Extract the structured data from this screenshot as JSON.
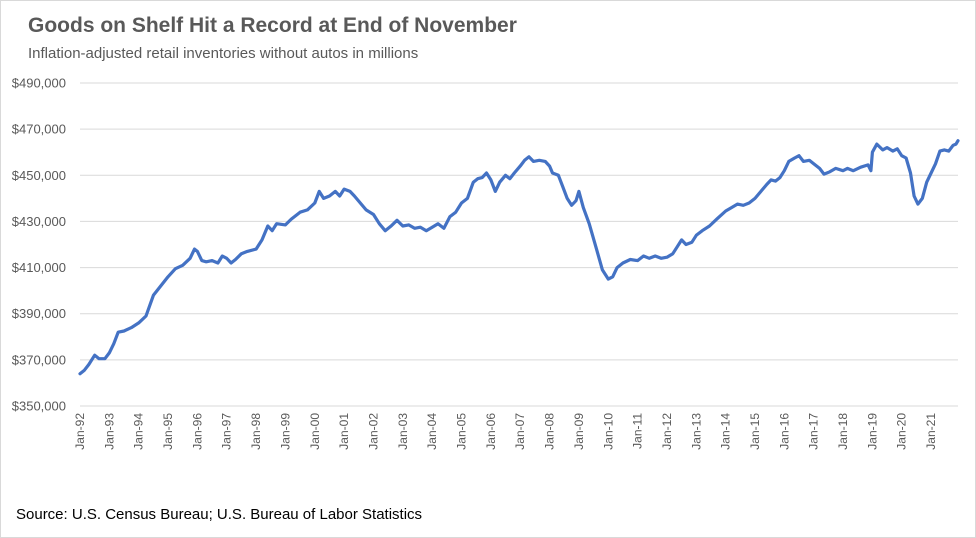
{
  "chart_data": {
    "type": "line",
    "title": "Goods on Shelf Hit a Record at End of November",
    "subtitle": "Inflation-adjusted retail inventories without autos in millions",
    "source": "Source: U.S. Census Bureau; U.S. Bureau of Labor Statistics",
    "xlabel": "",
    "ylabel": "",
    "ylim": [
      350000,
      490000
    ],
    "y_ticks": [
      {
        "value": 350000,
        "label": "$350,000"
      },
      {
        "value": 370000,
        "label": "$370,000"
      },
      {
        "value": 390000,
        "label": "$390,000"
      },
      {
        "value": 410000,
        "label": "$410,000"
      },
      {
        "value": 430000,
        "label": "$430,000"
      },
      {
        "value": 450000,
        "label": "$450,000"
      },
      {
        "value": 470000,
        "label": "$470,000"
      },
      {
        "value": 490000,
        "label": "$490,000"
      }
    ],
    "x_range": [
      1992.0,
      2021.917
    ],
    "x_ticks": [
      {
        "value": 1992,
        "label": "Jan-92"
      },
      {
        "value": 1993,
        "label": "Jan-93"
      },
      {
        "value": 1994,
        "label": "Jan-94"
      },
      {
        "value": 1995,
        "label": "Jan-95"
      },
      {
        "value": 1996,
        "label": "Jan-96"
      },
      {
        "value": 1997,
        "label": "Jan-97"
      },
      {
        "value": 1998,
        "label": "Jan-98"
      },
      {
        "value": 1999,
        "label": "Jan-99"
      },
      {
        "value": 2000,
        "label": "Jan-00"
      },
      {
        "value": 2001,
        "label": "Jan-01"
      },
      {
        "value": 2002,
        "label": "Jan-02"
      },
      {
        "value": 2003,
        "label": "Jan-03"
      },
      {
        "value": 2004,
        "label": "Jan-04"
      },
      {
        "value": 2005,
        "label": "Jan-05"
      },
      {
        "value": 2006,
        "label": "Jan-06"
      },
      {
        "value": 2007,
        "label": "Jan-07"
      },
      {
        "value": 2008,
        "label": "Jan-08"
      },
      {
        "value": 2009,
        "label": "Jan-09"
      },
      {
        "value": 2010,
        "label": "Jan-10"
      },
      {
        "value": 2011,
        "label": "Jan-11"
      },
      {
        "value": 2012,
        "label": "Jan-12"
      },
      {
        "value": 2013,
        "label": "Jan-13"
      },
      {
        "value": 2014,
        "label": "Jan-14"
      },
      {
        "value": 2015,
        "label": "Jan-15"
      },
      {
        "value": 2016,
        "label": "Jan-16"
      },
      {
        "value": 2017,
        "label": "Jan-17"
      },
      {
        "value": 2018,
        "label": "Jan-18"
      },
      {
        "value": 2019,
        "label": "Jan-19"
      },
      {
        "value": 2020,
        "label": "Jan-20"
      },
      {
        "value": 2021,
        "label": "Jan-21"
      }
    ],
    "grid": true,
    "legend": "none",
    "series": [
      {
        "name": "Inflation-adjusted retail inventories without autos",
        "color": "#4472c4",
        "points": [
          [
            1992.0,
            364000
          ],
          [
            1992.15,
            365500
          ],
          [
            1992.3,
            368000
          ],
          [
            1992.5,
            372000
          ],
          [
            1992.65,
            370500
          ],
          [
            1992.85,
            370500
          ],
          [
            1993.0,
            373000
          ],
          [
            1993.15,
            377000
          ],
          [
            1993.3,
            382000
          ],
          [
            1993.5,
            382500
          ],
          [
            1993.75,
            384000
          ],
          [
            1994.0,
            386000
          ],
          [
            1994.25,
            389000
          ],
          [
            1994.5,
            398000
          ],
          [
            1994.75,
            402000
          ],
          [
            1995.0,
            406000
          ],
          [
            1995.25,
            409500
          ],
          [
            1995.5,
            411000
          ],
          [
            1995.75,
            414000
          ],
          [
            1995.9,
            418000
          ],
          [
            1996.0,
            417000
          ],
          [
            1996.15,
            413000
          ],
          [
            1996.3,
            412500
          ],
          [
            1996.5,
            413000
          ],
          [
            1996.7,
            412000
          ],
          [
            1996.85,
            415000
          ],
          [
            1997.0,
            414000
          ],
          [
            1997.15,
            412000
          ],
          [
            1997.3,
            413500
          ],
          [
            1997.5,
            416000
          ],
          [
            1997.7,
            417000
          ],
          [
            1998.0,
            418000
          ],
          [
            1998.2,
            422000
          ],
          [
            1998.4,
            428000
          ],
          [
            1998.55,
            426000
          ],
          [
            1998.7,
            429000
          ],
          [
            1999.0,
            428500
          ],
          [
            1999.2,
            431000
          ],
          [
            1999.5,
            434000
          ],
          [
            1999.75,
            435000
          ],
          [
            2000.0,
            438000
          ],
          [
            2000.15,
            443000
          ],
          [
            2000.3,
            440000
          ],
          [
            2000.5,
            441000
          ],
          [
            2000.7,
            443000
          ],
          [
            2000.85,
            441000
          ],
          [
            2001.0,
            444000
          ],
          [
            2001.2,
            443000
          ],
          [
            2001.35,
            441000
          ],
          [
            2001.55,
            438000
          ],
          [
            2001.75,
            435000
          ],
          [
            2002.0,
            433000
          ],
          [
            2002.2,
            429000
          ],
          [
            2002.4,
            426000
          ],
          [
            2002.6,
            428000
          ],
          [
            2002.8,
            430500
          ],
          [
            2003.0,
            428000
          ],
          [
            2003.2,
            428500
          ],
          [
            2003.4,
            427000
          ],
          [
            2003.6,
            427500
          ],
          [
            2003.8,
            426000
          ],
          [
            2004.0,
            427500
          ],
          [
            2004.2,
            429000
          ],
          [
            2004.4,
            427000
          ],
          [
            2004.6,
            432000
          ],
          [
            2004.8,
            434000
          ],
          [
            2005.0,
            438000
          ],
          [
            2005.2,
            440000
          ],
          [
            2005.4,
            447000
          ],
          [
            2005.55,
            448500
          ],
          [
            2005.7,
            449000
          ],
          [
            2005.85,
            451000
          ],
          [
            2006.0,
            448000
          ],
          [
            2006.15,
            443000
          ],
          [
            2006.3,
            447000
          ],
          [
            2006.5,
            450000
          ],
          [
            2006.65,
            448500
          ],
          [
            2006.8,
            451000
          ],
          [
            2007.0,
            454000
          ],
          [
            2007.15,
            456500
          ],
          [
            2007.3,
            458000
          ],
          [
            2007.45,
            456000
          ],
          [
            2007.65,
            456500
          ],
          [
            2007.85,
            456000
          ],
          [
            2008.0,
            454000
          ],
          [
            2008.1,
            451000
          ],
          [
            2008.3,
            450000
          ],
          [
            2008.45,
            445000
          ],
          [
            2008.6,
            440000
          ],
          [
            2008.75,
            437000
          ],
          [
            2008.9,
            439000
          ],
          [
            2009.0,
            443000
          ],
          [
            2009.15,
            436000
          ],
          [
            2009.35,
            429000
          ],
          [
            2009.6,
            418000
          ],
          [
            2009.8,
            409000
          ],
          [
            2010.0,
            405000
          ],
          [
            2010.15,
            406000
          ],
          [
            2010.3,
            410000
          ],
          [
            2010.5,
            412000
          ],
          [
            2010.75,
            413500
          ],
          [
            2011.0,
            413000
          ],
          [
            2011.2,
            415000
          ],
          [
            2011.4,
            414000
          ],
          [
            2011.6,
            415000
          ],
          [
            2011.8,
            414000
          ],
          [
            2012.0,
            414500
          ],
          [
            2012.2,
            416000
          ],
          [
            2012.35,
            419000
          ],
          [
            2012.5,
            422000
          ],
          [
            2012.65,
            420000
          ],
          [
            2012.85,
            421000
          ],
          [
            2013.0,
            424000
          ],
          [
            2013.2,
            426000
          ],
          [
            2013.45,
            428000
          ],
          [
            2013.7,
            431000
          ],
          [
            2014.0,
            434500
          ],
          [
            2014.2,
            436000
          ],
          [
            2014.4,
            437500
          ],
          [
            2014.6,
            437000
          ],
          [
            2014.8,
            438000
          ],
          [
            2015.0,
            440000
          ],
          [
            2015.2,
            443000
          ],
          [
            2015.4,
            446000
          ],
          [
            2015.55,
            448000
          ],
          [
            2015.7,
            447500
          ],
          [
            2015.85,
            449000
          ],
          [
            2016.0,
            452000
          ],
          [
            2016.15,
            456000
          ],
          [
            2016.35,
            457500
          ],
          [
            2016.5,
            458500
          ],
          [
            2016.65,
            456000
          ],
          [
            2016.85,
            456500
          ],
          [
            2017.0,
            455000
          ],
          [
            2017.2,
            453000
          ],
          [
            2017.35,
            450500
          ],
          [
            2017.55,
            451500
          ],
          [
            2017.75,
            453000
          ],
          [
            2018.0,
            452000
          ],
          [
            2018.15,
            453000
          ],
          [
            2018.35,
            452000
          ],
          [
            2018.6,
            453500
          ],
          [
            2018.85,
            454500
          ],
          [
            2018.95,
            452000
          ],
          [
            2019.0,
            460000
          ],
          [
            2019.15,
            463500
          ],
          [
            2019.35,
            461000
          ],
          [
            2019.5,
            462000
          ],
          [
            2019.7,
            460500
          ],
          [
            2019.85,
            461500
          ],
          [
            2020.0,
            458500
          ],
          [
            2020.15,
            457500
          ],
          [
            2020.3,
            451000
          ],
          [
            2020.42,
            441000
          ],
          [
            2020.55,
            437500
          ],
          [
            2020.7,
            440000
          ],
          [
            2020.85,
            447000
          ],
          [
            2021.0,
            451000
          ],
          [
            2021.15,
            455000
          ],
          [
            2021.3,
            460500
          ],
          [
            2021.45,
            461000
          ],
          [
            2021.6,
            460500
          ],
          [
            2021.75,
            463000
          ],
          [
            2021.85,
            463500
          ],
          [
            2021.917,
            465000
          ]
        ]
      }
    ]
  }
}
